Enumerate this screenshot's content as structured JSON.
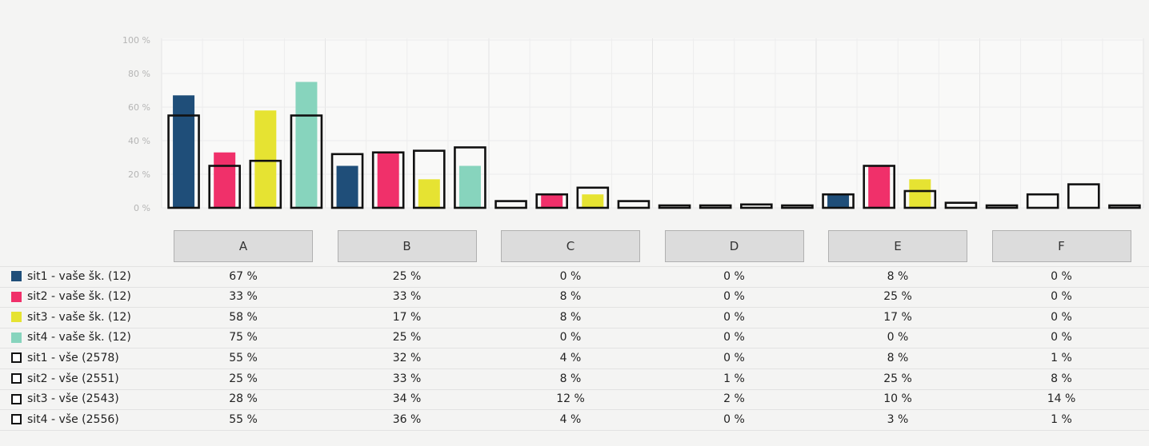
{
  "chart_data": {
    "type": "bar",
    "categories": [
      "A",
      "B",
      "C",
      "D",
      "E",
      "F"
    ],
    "ylim": [
      0,
      100
    ],
    "yticks": [
      "100 %",
      "80 %",
      "60 %",
      "40 %",
      "20 %",
      "0 %"
    ],
    "ytick_values": [
      100,
      80,
      60,
      40,
      20,
      0
    ],
    "series": [
      {
        "name": "sit1 - vaše šk. (12)",
        "color": "#1f4e79",
        "style": "filled",
        "values": [
          67,
          25,
          0,
          0,
          8,
          0
        ],
        "labels": [
          "67 %",
          "25 %",
          "0 %",
          "0 %",
          "8 %",
          "0 %"
        ]
      },
      {
        "name": "sit2 - vaše šk. (12)",
        "color": "#f0306a",
        "style": "filled",
        "values": [
          33,
          33,
          8,
          0,
          25,
          0
        ],
        "labels": [
          "33 %",
          "33 %",
          "8 %",
          "0 %",
          "25 %",
          "0 %"
        ]
      },
      {
        "name": "sit3 - vaše šk. (12)",
        "color": "#e6e332",
        "style": "filled",
        "values": [
          58,
          17,
          8,
          0,
          17,
          0
        ],
        "labels": [
          "58 %",
          "17 %",
          "8 %",
          "0 %",
          "17 %",
          "0 %"
        ]
      },
      {
        "name": "sit4 - vaše šk. (12)",
        "color": "#87d4bd",
        "style": "filled",
        "values": [
          75,
          25,
          0,
          0,
          0,
          0
        ],
        "labels": [
          "75 %",
          "25 %",
          "0 %",
          "0 %",
          "0 %",
          "0 %"
        ]
      },
      {
        "name": "sit1 - vše (2578)",
        "color": "#111111",
        "style": "outline",
        "values": [
          55,
          32,
          4,
          0,
          8,
          1
        ],
        "labels": [
          "55 %",
          "32 %",
          "4 %",
          "0 %",
          "8 %",
          "1 %"
        ]
      },
      {
        "name": "sit2 - vše (2551)",
        "color": "#111111",
        "style": "outline",
        "values": [
          25,
          33,
          8,
          1,
          25,
          8
        ],
        "labels": [
          "25 %",
          "33 %",
          "8 %",
          "1 %",
          "25 %",
          "8 %"
        ]
      },
      {
        "name": "sit3 - vše (2543)",
        "color": "#111111",
        "style": "outline",
        "values": [
          28,
          34,
          12,
          2,
          10,
          14
        ],
        "labels": [
          "28 %",
          "34 %",
          "12 %",
          "2 %",
          "10 %",
          "14 %"
        ]
      },
      {
        "name": "sit4 - vše (2556)",
        "color": "#111111",
        "style": "outline",
        "values": [
          55,
          36,
          4,
          0,
          3,
          1
        ],
        "labels": [
          "55 %",
          "36 %",
          "4 %",
          "0 %",
          "3 %",
          "1 %"
        ]
      }
    ],
    "grid": true,
    "legend": "left-table"
  }
}
